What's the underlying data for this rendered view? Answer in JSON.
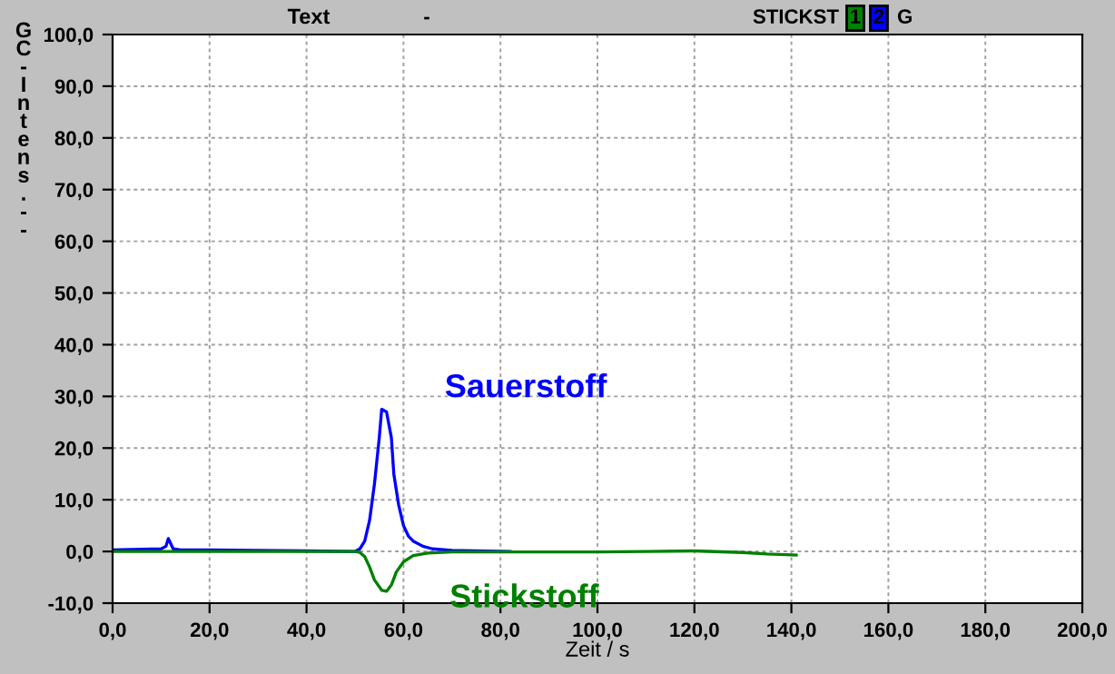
{
  "chart_data": {
    "type": "line",
    "title": "Text",
    "ylabel": "GC-Intens. - -",
    "xlabel": "Zeit / s",
    "annotations": [
      "-",
      "STICKST",
      "1",
      "2",
      "G"
    ],
    "xlim": [
      0,
      200
    ],
    "ylim": [
      -10,
      100
    ],
    "xticks": [
      {
        "value": 0,
        "label": "0,0"
      },
      {
        "value": 20,
        "label": "20,0"
      },
      {
        "value": 40,
        "label": "40,0"
      },
      {
        "value": 60,
        "label": "60,0"
      },
      {
        "value": 80,
        "label": "80,0"
      },
      {
        "value": 100,
        "label": "100,0"
      },
      {
        "value": 120,
        "label": "120,0"
      },
      {
        "value": 140,
        "label": "140,0"
      },
      {
        "value": 160,
        "label": "160,0"
      },
      {
        "value": 180,
        "label": "180,0"
      },
      {
        "value": 200,
        "label": "200,0"
      }
    ],
    "yticks": [
      {
        "value": -10,
        "label": "-10,0"
      },
      {
        "value": 0,
        "label": "0,0"
      },
      {
        "value": 10,
        "label": "10,0"
      },
      {
        "value": 20,
        "label": "20,0"
      },
      {
        "value": 30,
        "label": "30,0"
      },
      {
        "value": 40,
        "label": "40,0"
      },
      {
        "value": 50,
        "label": "50,0"
      },
      {
        "value": 60,
        "label": "60,0"
      },
      {
        "value": 70,
        "label": "70,0"
      },
      {
        "value": 80,
        "label": "80,0"
      },
      {
        "value": 90,
        "label": "90,0"
      },
      {
        "value": 100,
        "label": "100,0"
      }
    ],
    "grid": true,
    "legend": false,
    "marker": "none",
    "line_style": "solid",
    "series": [
      {
        "name": "Sauerstoff",
        "color": "#0000ff",
        "x": [
          0,
          10,
          11,
          11.5,
          12.5,
          14,
          20,
          40,
          50,
          51,
          52,
          53,
          54,
          55,
          55.5,
          56.5,
          57.5,
          58,
          59,
          60,
          61,
          62,
          64,
          66,
          70,
          82
        ],
        "values": [
          0.3,
          0.5,
          1,
          2.5,
          0.5,
          0.3,
          0.3,
          0.1,
          0,
          0.5,
          2,
          6,
          13,
          22,
          27.5,
          27,
          22,
          15,
          9,
          5,
          3,
          2,
          1,
          0.5,
          0.2,
          0
        ]
      },
      {
        "name": "Stickstoff",
        "color": "#008000",
        "x": [
          0,
          50,
          51,
          52,
          53,
          54,
          55.5,
          56.5,
          57.5,
          58.5,
          60,
          62,
          65,
          70,
          100,
          110,
          120,
          130,
          135,
          141
        ],
        "values": [
          0,
          0,
          -0.2,
          -1,
          -3,
          -5.5,
          -7.5,
          -7.7,
          -6.5,
          -4,
          -2,
          -0.8,
          -0.3,
          -0.1,
          -0.1,
          0,
          0.1,
          -0.2,
          -0.5,
          -0.7
        ]
      }
    ]
  }
}
